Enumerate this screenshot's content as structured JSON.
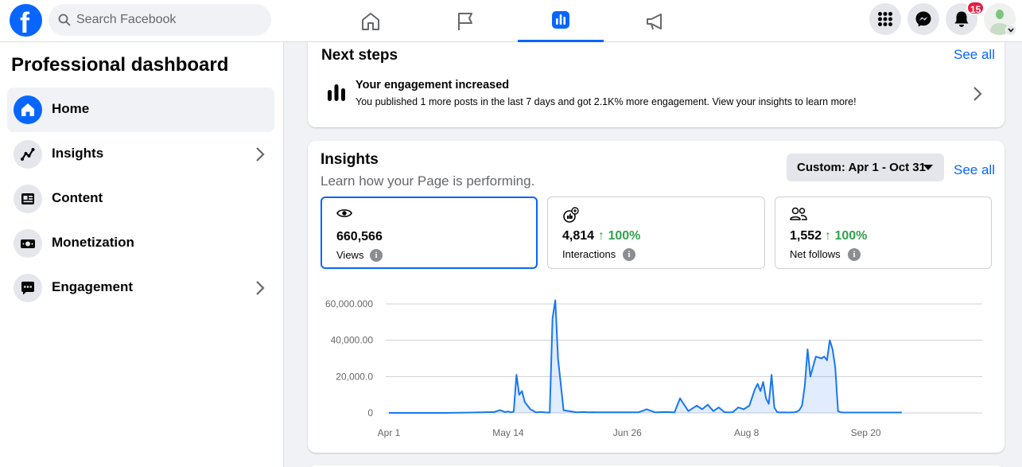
{
  "header": {
    "logo_letter": "f",
    "search_placeholder": "Search Facebook",
    "notification_count": "15"
  },
  "sidebar": {
    "title": "Professional dashboard",
    "items": [
      {
        "label": "Home",
        "icon": "home-icon",
        "active": true
      },
      {
        "label": "Insights",
        "icon": "insights-icon",
        "chevron": true
      },
      {
        "label": "Content",
        "icon": "content-icon"
      },
      {
        "label": "Monetization",
        "icon": "money-icon"
      },
      {
        "label": "Engagement",
        "icon": "chat-icon",
        "chevron": true
      }
    ]
  },
  "next_steps": {
    "title": "Next steps",
    "see_all": "See all",
    "item_title": "Your engagement increased",
    "item_desc": "You published 1 more posts in the last 7 days and got 2.1K% more engagement. View your insights to learn more!"
  },
  "insights": {
    "title": "Insights",
    "subtitle": "Learn how your Page is performing.",
    "date_range": "Custom: Apr 1 - Oct 31",
    "see_all": "See all",
    "metrics": [
      {
        "value": "660,566",
        "label": "Views",
        "change": ""
      },
      {
        "value": "4,814",
        "label": "Interactions",
        "change": "↑ 100%"
      },
      {
        "value": "1,552",
        "label": "Net follows",
        "change": "↑ 100%"
      }
    ]
  },
  "colors": {
    "brand": "#0866ff",
    "positive": "#31a24c",
    "badge": "#e41e3f"
  },
  "chart_data": {
    "type": "area",
    "title": "",
    "xlabel": "",
    "ylabel": "",
    "y_tick_labels": [
      "0",
      "20,000.0",
      "40,000.00",
      "60,000.000"
    ],
    "y_ticks": [
      0,
      20000,
      40000,
      60000
    ],
    "ylim": [
      0,
      60000
    ],
    "x_tick_labels": [
      "Apr 1",
      "May 14",
      "Jun 26",
      "Aug 8",
      "Sep 20"
    ],
    "x_tick_days": [
      0,
      43,
      86,
      129,
      172
    ],
    "grid": true,
    "series": [
      {
        "x": [
          0,
          20,
          30,
          38,
          40,
          42,
          43,
          44,
          45,
          46,
          47,
          48,
          49,
          51,
          53,
          55,
          57,
          58,
          59,
          60,
          61,
          63,
          67,
          68,
          70,
          72,
          73,
          75,
          76,
          78,
          85,
          90,
          93,
          96,
          100,
          103,
          105,
          108,
          111,
          113,
          115,
          117,
          119,
          121,
          122,
          124,
          126,
          128,
          130,
          132,
          133,
          134,
          135,
          136,
          137,
          138,
          139,
          140,
          141,
          142,
          144,
          146,
          147,
          148,
          149,
          150,
          151,
          152,
          154,
          156,
          157,
          158,
          159,
          160,
          161,
          162,
          163,
          164,
          165,
          170,
          175,
          180,
          185
        ],
        "y": [
          0,
          0,
          200,
          500,
          1500,
          500,
          800,
          300,
          700,
          21000,
          10000,
          12000,
          6000,
          2000,
          300,
          500,
          200,
          200,
          52000,
          62000,
          30000,
          1500,
          500,
          300,
          500,
          300,
          400,
          300,
          300,
          300,
          300,
          300,
          2000,
          300,
          500,
          300,
          8000,
          1000,
          4000,
          2000,
          4500,
          1000,
          3000,
          400,
          300,
          400,
          3000,
          2000,
          4000,
          13000,
          16000,
          12000,
          17000,
          8000,
          5000,
          21000,
          3000,
          500,
          200,
          300,
          200,
          300,
          600,
          1500,
          4000,
          15000,
          35000,
          20000,
          31000,
          30000,
          31000,
          29000,
          40000,
          35000,
          25000,
          1000,
          300,
          200,
          200,
          200,
          200,
          200,
          200
        ]
      }
    ]
  }
}
